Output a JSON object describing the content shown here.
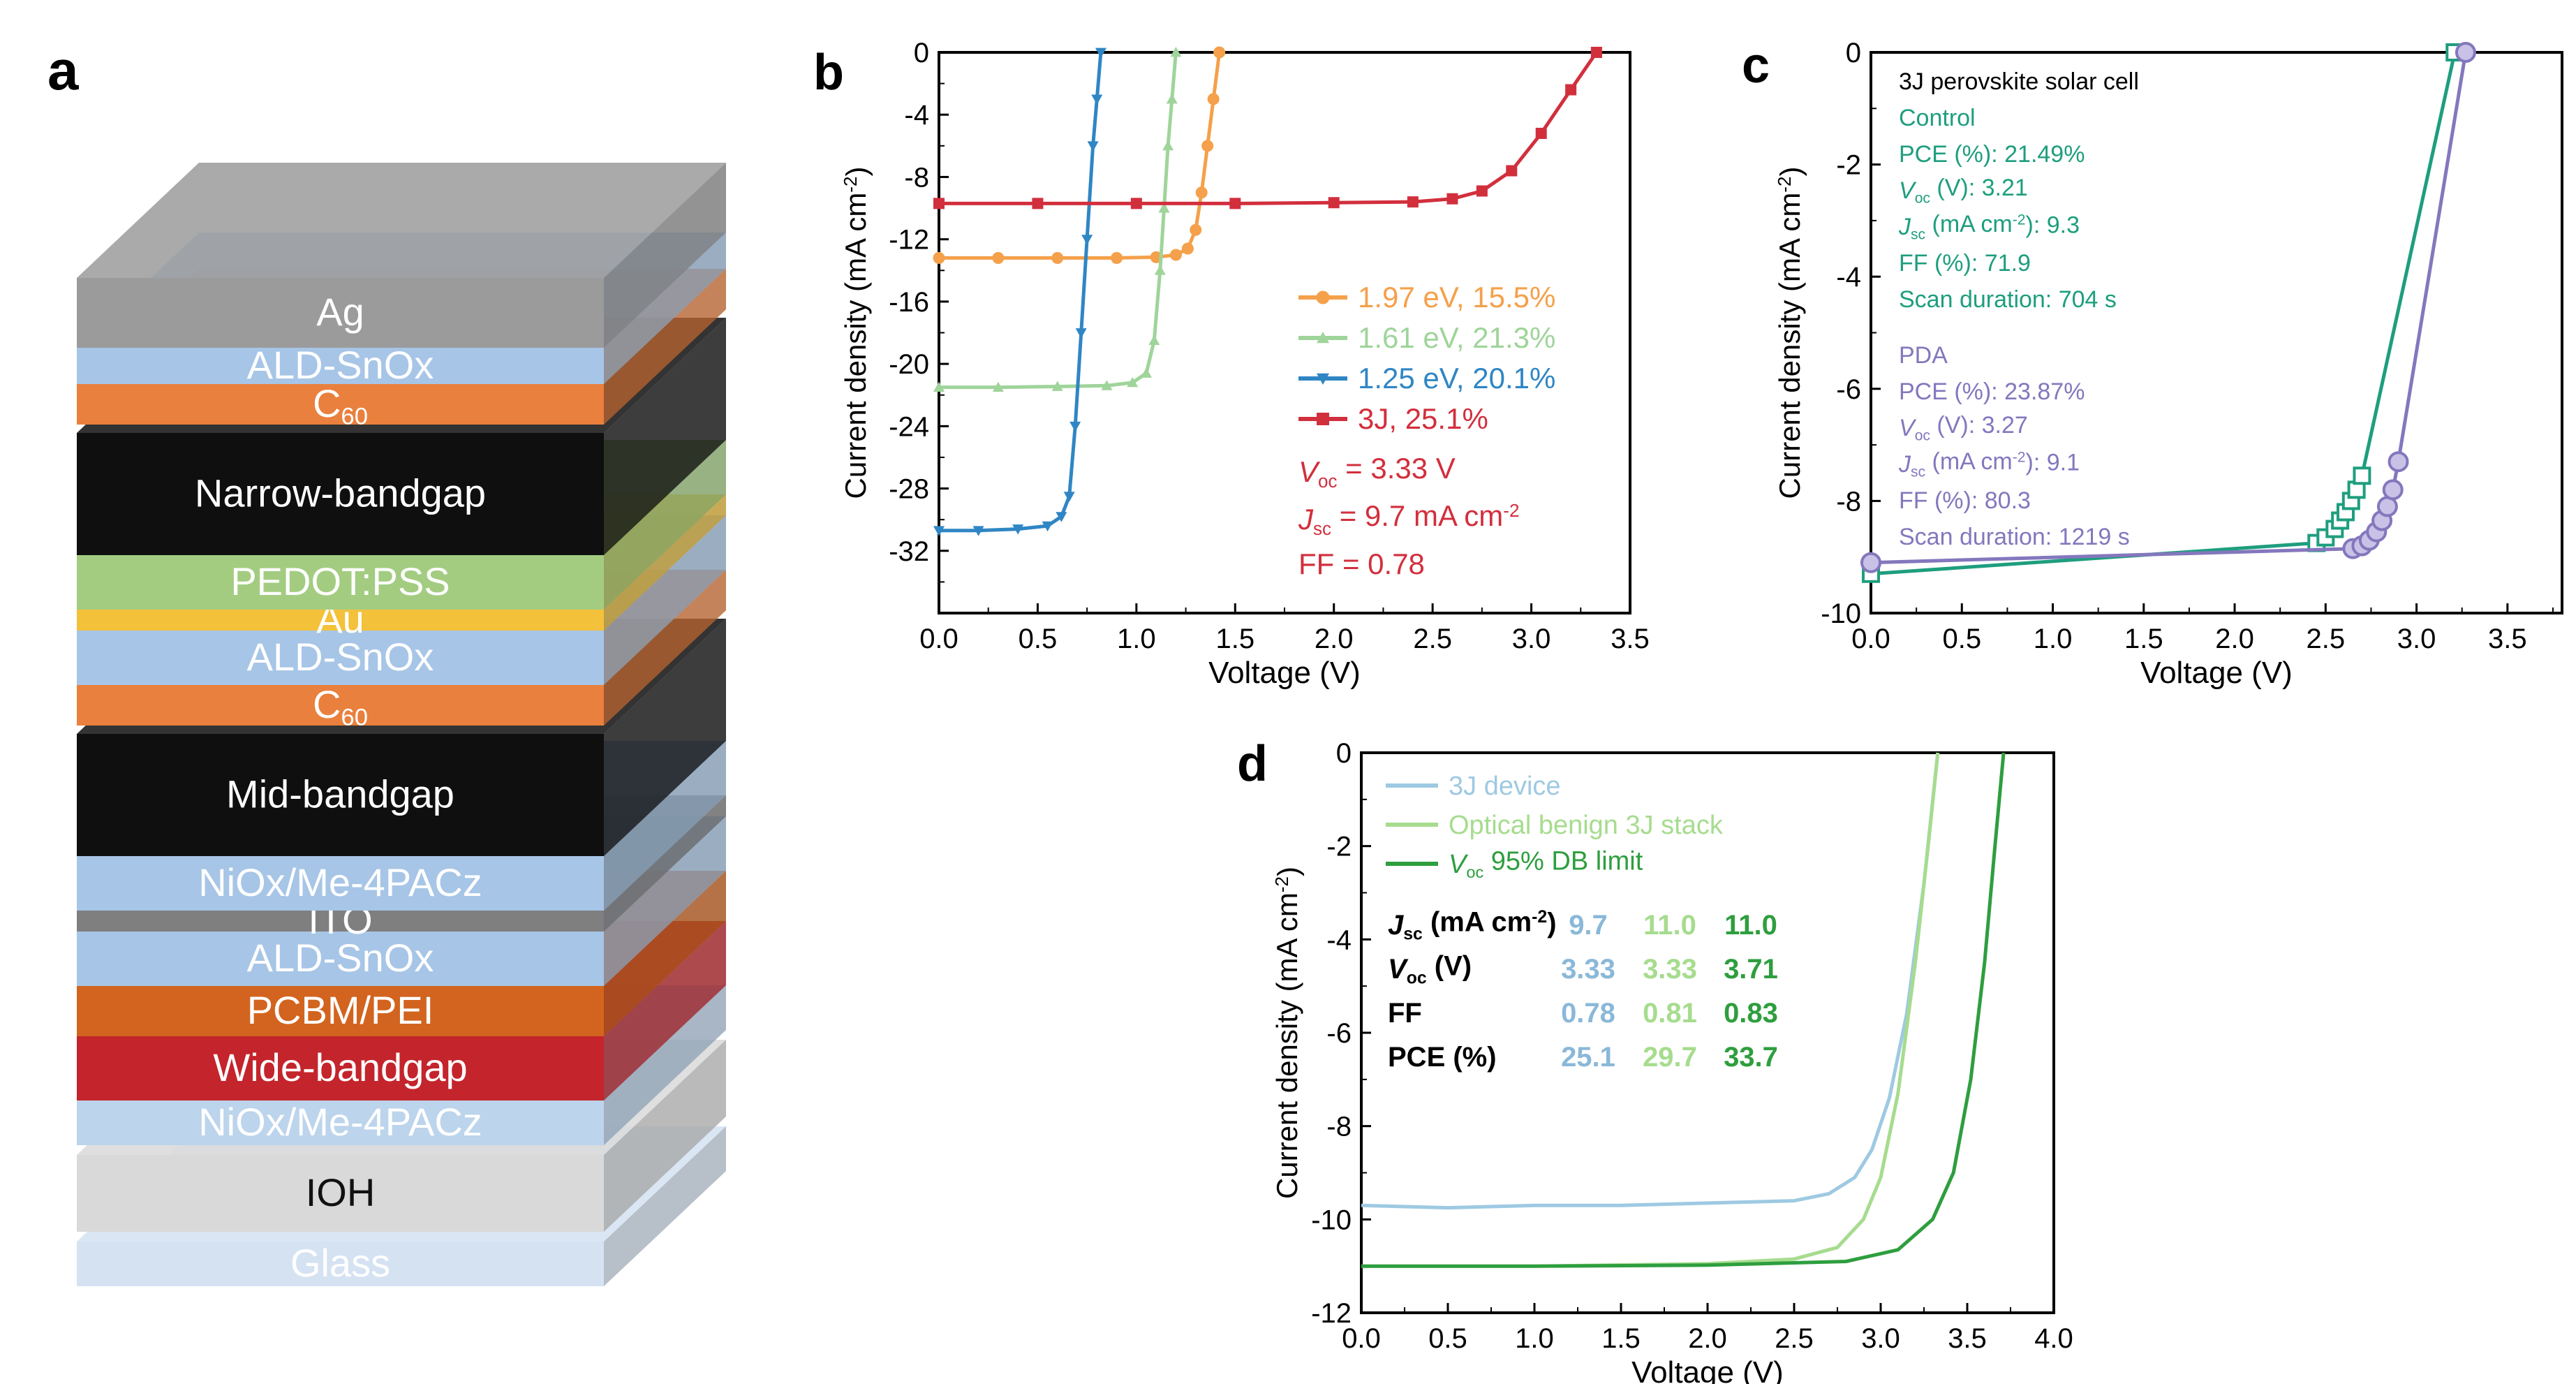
{
  "panel_a": {
    "label": "a",
    "layers": [
      {
        "label": "Ag",
        "sub": "",
        "color": "#9b9b9b",
        "text_color": "#ffffff"
      },
      {
        "label": "ALD-SnOx",
        "sub": "",
        "color": "#a7c5e6",
        "text_color": "#ffffff"
      },
      {
        "label": "C",
        "sub": "60",
        "color": "#e9803d",
        "text_color": "#ffffff"
      },
      {
        "label": "Narrow-bandgap",
        "sub": "",
        "color": "#0f0f0f",
        "text_color": "#ffffff"
      },
      {
        "label": "PEDOT:PSS",
        "sub": "",
        "color": "#a3cc81",
        "text_color": "#ffffff"
      },
      {
        "label": "Au",
        "sub": "",
        "color": "#f3c13a",
        "text_color": "#ffffff"
      },
      {
        "label": "ALD-SnOx",
        "sub": "",
        "color": "#a7c5e6",
        "text_color": "#ffffff"
      },
      {
        "label": "C",
        "sub": "60",
        "color": "#e9803d",
        "text_color": "#ffffff"
      },
      {
        "label": "Mid-bandgap",
        "sub": "",
        "color": "#0f0f0f",
        "text_color": "#ffffff"
      },
      {
        "label": "NiOx/Me-4PACz",
        "sub": "",
        "color": "#a7c5e6",
        "text_color": "#ffffff"
      },
      {
        "label": "ITO",
        "sub": "",
        "color": "#7f7f7f",
        "text_color": "#ffffff"
      },
      {
        "label": "ALD-SnOx",
        "sub": "",
        "color": "#a7c5e6",
        "text_color": "#ffffff"
      },
      {
        "label": "PCBM/PEI",
        "sub": "",
        "color": "#d2641f",
        "text_color": "#ffffff"
      },
      {
        "label": "Wide-bandgap",
        "sub": "",
        "color": "#c4242b",
        "text_color": "#ffffff"
      },
      {
        "label": "NiOx/Me-4PACz",
        "sub": "",
        "color": "#bcd4ec",
        "text_color": "#ffffff"
      },
      {
        "label": "IOH",
        "sub": "",
        "color": "#d9d9d9",
        "text_color": "#111111"
      },
      {
        "label": "Glass",
        "sub": "",
        "color": "#d5e2f2",
        "text_color": "#ffffff"
      }
    ]
  },
  "panel_b": {
    "label": "b",
    "xlabel": "Voltage (V)",
    "ylabel": "Current density (mA cm⁻²)",
    "xticks": [
      "0.0",
      "0.5",
      "1.0",
      "1.5",
      "2.0",
      "2.5",
      "3.0",
      "3.5"
    ],
    "yticks": [
      "0",
      "-4",
      "-8",
      "-12",
      "-16",
      "-20",
      "-24",
      "-28",
      "-32"
    ],
    "legend": [
      {
        "text": "1.97 eV, 15.5%",
        "color": "#f5a04a"
      },
      {
        "text": "1.61 eV, 21.3%",
        "color": "#9fd49a"
      },
      {
        "text": "1.25 eV, 20.1%",
        "color": "#2f86c4"
      },
      {
        "text": "3J, 25.1%",
        "color": "#d22f3d"
      }
    ],
    "params": {
      "voc": "V",
      "voc_sub": "oc",
      "voc_val": " = 3.33 V",
      "jsc": "J",
      "jsc_sub": "sc",
      "jsc_val": " = 9.7 mA cm",
      "jsc_sup": "-2",
      "ff": "FF = 0.78",
      "color": "#d22f3d"
    }
  },
  "panel_c": {
    "label": "c",
    "xlabel": "Voltage (V)",
    "ylabel": "Current density (mA cm⁻²)",
    "xticks": [
      "0.0",
      "0.5",
      "1.0",
      "1.5",
      "2.0",
      "2.5",
      "3.0",
      "3.5"
    ],
    "yticks": [
      "0",
      "-2",
      "-4",
      "-6",
      "-8",
      "-10"
    ],
    "title": "3J perovskite solar cell",
    "control": {
      "heading": "Control",
      "pce": "PCE (%): 21.49%",
      "voc": ": 3.21",
      "jsc": ": 9.3",
      "ff": "FF (%): 71.9",
      "scan": "Scan duration: 704 s",
      "color": "#1e9e7e"
    },
    "pda": {
      "heading": "PDA",
      "pce": "PCE (%): 23.87%",
      "voc": ": 3.27",
      "jsc": ": 9.1",
      "ff": "FF (%): 80.3",
      "scan": "Scan duration: 1219 s",
      "color": "#8477bd"
    }
  },
  "panel_d": {
    "label": "d",
    "xlabel": "Voltage (V)",
    "ylabel": "Current density (mA cm⁻²)",
    "xticks": [
      "0.0",
      "0.5",
      "1.0",
      "1.5",
      "2.0",
      "2.5",
      "3.0",
      "3.5",
      "4.0"
    ],
    "yticks": [
      "0",
      "-2",
      "-4",
      "-6",
      "-8",
      "-10",
      "-12"
    ],
    "legend": [
      {
        "text": "3J device",
        "color": "#9ec9e2"
      },
      {
        "text": "Optical benign 3J stack",
        "color": "#a6dc8e"
      },
      {
        "text": " 95% DB limit",
        "color": "#2e9e3e"
      }
    ],
    "table": {
      "rows": [
        {
          "label": "J",
          "sub": "sc",
          "rest": " (mA cm",
          "sup": "-2",
          "tail": ")",
          "vals": [
            "9.7",
            "11.0",
            "11.0"
          ]
        },
        {
          "label": "V",
          "sub": "oc",
          "rest": " (V)",
          "sup": "",
          "tail": "",
          "vals": [
            "3.33",
            "3.33",
            "3.71"
          ]
        },
        {
          "label": "FF",
          "sub": "",
          "rest": "",
          "sup": "",
          "tail": "",
          "vals": [
            "0.78",
            "0.81",
            "0.83"
          ]
        },
        {
          "label": "PCE (%)",
          "sub": "",
          "rest": "",
          "sup": "",
          "tail": "",
          "vals": [
            "25.1",
            "29.7",
            "33.7"
          ]
        }
      ],
      "col_colors": [
        "#8ab8d8",
        "#a6dc8e",
        "#2e9e3e"
      ]
    }
  },
  "chart_data": [
    {
      "type": "line",
      "panel": "b",
      "xlabel": "Voltage (V)",
      "ylabel": "Current density (mA cm-2)",
      "xlim": [
        0,
        3.5
      ],
      "ylim": [
        -36,
        0
      ],
      "series": [
        {
          "name": "1.97 eV, 15.5%",
          "color": "#f5a04a",
          "marker": "circle",
          "x": [
            0,
            0.3,
            0.6,
            0.9,
            1.1,
            1.2,
            1.26,
            1.3,
            1.33,
            1.36,
            1.39,
            1.42
          ],
          "y": [
            -13.2,
            -13.2,
            -13.2,
            -13.2,
            -13.15,
            -13.0,
            -12.6,
            -11.4,
            -9.0,
            -6.0,
            -3.0,
            0
          ]
        },
        {
          "name": "1.61 eV, 21.3%",
          "color": "#9fd49a",
          "marker": "triangle",
          "x": [
            0,
            0.3,
            0.6,
            0.85,
            0.98,
            1.05,
            1.09,
            1.12,
            1.14,
            1.16,
            1.18,
            1.2
          ],
          "y": [
            -21.5,
            -21.5,
            -21.45,
            -21.4,
            -21.2,
            -20.6,
            -18.5,
            -14.0,
            -10.0,
            -6.0,
            -3.0,
            0
          ]
        },
        {
          "name": "1.25 eV, 20.1%",
          "color": "#2f86c4",
          "marker": "triangle-down",
          "x": [
            0,
            0.2,
            0.4,
            0.55,
            0.62,
            0.66,
            0.69,
            0.72,
            0.75,
            0.78,
            0.8,
            0.82
          ],
          "y": [
            -30.7,
            -30.7,
            -30.6,
            -30.4,
            -29.8,
            -28.5,
            -24.0,
            -18.0,
            -12.0,
            -6.0,
            -3.0,
            0
          ]
        },
        {
          "name": "3J, 25.1%",
          "color": "#d22f3d",
          "marker": "square",
          "x": [
            0,
            0.5,
            1.0,
            1.5,
            2.0,
            2.4,
            2.6,
            2.75,
            2.9,
            3.05,
            3.2,
            3.33
          ],
          "y": [
            -9.7,
            -9.7,
            -9.7,
            -9.7,
            -9.65,
            -9.6,
            -9.4,
            -8.9,
            -7.6,
            -5.2,
            -2.4,
            0
          ]
        }
      ]
    },
    {
      "type": "line",
      "panel": "c",
      "title": "3J perovskite solar cell",
      "xlabel": "Voltage (V)",
      "ylabel": "Current density (mA cm-2)",
      "xlim": [
        0,
        3.8
      ],
      "ylim": [
        -10,
        0
      ],
      "series": [
        {
          "name": "Control",
          "color": "#1e9e7e",
          "marker": "square",
          "x": [
            0,
            2.45,
            2.5,
            2.55,
            2.58,
            2.61,
            2.64,
            2.67,
            2.7,
            3.21
          ],
          "y": [
            -9.3,
            -8.75,
            -8.65,
            -8.5,
            -8.35,
            -8.2,
            -8.0,
            -7.8,
            -7.55,
            0
          ]
        },
        {
          "name": "PDA",
          "color": "#8477bd",
          "marker": "circle",
          "x": [
            0,
            2.65,
            2.7,
            2.74,
            2.78,
            2.81,
            2.84,
            2.87,
            2.9,
            3.27
          ],
          "y": [
            -9.1,
            -8.85,
            -8.8,
            -8.7,
            -8.55,
            -8.35,
            -8.1,
            -7.8,
            -7.3,
            0
          ]
        }
      ]
    },
    {
      "type": "line",
      "panel": "d",
      "xlabel": "Voltage (V)",
      "ylabel": "Current density (mA cm-2)",
      "xlim": [
        0,
        4.0
      ],
      "ylim": [
        -12,
        0
      ],
      "series": [
        {
          "name": "3J device",
          "color": "#9ec9e2",
          "x": [
            0,
            0.5,
            1.0,
            1.5,
            2.0,
            2.5,
            2.7,
            2.85,
            2.95,
            3.05,
            3.15,
            3.25,
            3.33
          ],
          "y": [
            -9.7,
            -9.75,
            -9.7,
            -9.7,
            -9.65,
            -9.6,
            -9.45,
            -9.1,
            -8.5,
            -7.4,
            -5.6,
            -2.8,
            0
          ]
        },
        {
          "name": "Optical benign 3J stack",
          "color": "#a6dc8e",
          "x": [
            0,
            1.0,
            2.0,
            2.5,
            2.75,
            2.9,
            3.0,
            3.1,
            3.2,
            3.28,
            3.33
          ],
          "y": [
            -11.0,
            -11.0,
            -10.95,
            -10.85,
            -10.6,
            -10.0,
            -9.1,
            -7.3,
            -4.5,
            -1.8,
            0
          ]
        },
        {
          "name": "Voc 95% DB limit",
          "color": "#2e9e3e",
          "x": [
            0,
            1.0,
            2.0,
            2.8,
            3.1,
            3.3,
            3.42,
            3.52,
            3.6,
            3.66,
            3.71
          ],
          "y": [
            -11.0,
            -11.0,
            -10.98,
            -10.9,
            -10.65,
            -10.0,
            -9.0,
            -7.0,
            -4.5,
            -2.0,
            0
          ]
        }
      ]
    }
  ]
}
